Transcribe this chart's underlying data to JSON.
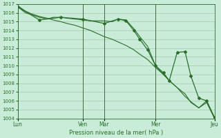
{
  "bg_color": "#c8ecd8",
  "grid_color": "#a8c8a8",
  "line_color": "#2a6e2a",
  "marker_color": "#2a6e2a",
  "xlabel": "Pression niveau de la mer( hPa )",
  "ylim": [
    1004,
    1017
  ],
  "yticks": [
    1004,
    1005,
    1006,
    1007,
    1008,
    1009,
    1010,
    1011,
    1012,
    1013,
    1014,
    1015,
    1016,
    1017
  ],
  "day_labels": [
    "Lun",
    "Ven",
    "Mar",
    "Mer",
    "Jeu"
  ],
  "day_positions": [
    0.0,
    0.33,
    0.44,
    0.7,
    1.0
  ],
  "vline_positions": [
    0.0,
    0.33,
    0.44,
    0.7,
    1.0
  ],
  "line1_x": [
    0.0,
    0.04,
    0.07,
    0.11,
    0.15,
    0.18,
    0.22,
    0.25,
    0.29,
    0.33,
    0.37,
    0.4,
    0.44,
    0.48,
    0.51,
    0.55,
    0.59,
    0.62,
    0.66,
    0.7,
    0.74,
    0.77,
    0.81,
    0.85,
    0.88,
    0.92,
    0.96,
    1.0
  ],
  "line1_y": [
    1016.7,
    1016.0,
    1015.8,
    1015.5,
    1015.3,
    1015.5,
    1015.5,
    1015.4,
    1015.3,
    1015.2,
    1015.1,
    1015.1,
    1015.1,
    1015.0,
    1015.3,
    1015.2,
    1014.2,
    1013.3,
    1012.2,
    1010.0,
    1009.0,
    1008.3,
    1007.5,
    1006.8,
    1005.8,
    1005.2,
    1006.0,
    1004.0
  ],
  "line2_x": [
    0.0,
    0.04,
    0.07,
    0.11,
    0.15,
    0.18,
    0.22,
    0.25,
    0.29,
    0.33,
    0.37,
    0.4,
    0.44,
    0.48,
    0.51,
    0.55,
    0.59,
    0.62,
    0.66,
    0.7,
    0.74,
    0.77,
    0.81,
    0.85,
    0.88,
    0.92,
    0.96,
    1.0
  ],
  "line2_y": [
    1016.8,
    1016.2,
    1015.9,
    1015.6,
    1015.4,
    1015.2,
    1015.0,
    1014.8,
    1014.6,
    1014.3,
    1014.0,
    1013.7,
    1013.3,
    1013.0,
    1012.7,
    1012.3,
    1011.8,
    1011.3,
    1010.7,
    1009.8,
    1009.0,
    1008.3,
    1007.5,
    1006.5,
    1005.9,
    1005.2,
    1005.8,
    1004.0
  ],
  "line3_x": [
    0.0,
    0.11,
    0.22,
    0.33,
    0.44,
    0.51,
    0.55,
    0.59,
    0.62,
    0.66,
    0.7,
    0.74,
    0.77,
    0.81,
    0.85,
    0.88,
    0.92,
    0.96,
    1.0
  ],
  "line3_y": [
    1016.7,
    1015.2,
    1015.5,
    1015.3,
    1014.8,
    1015.3,
    1015.1,
    1014.0,
    1013.0,
    1011.8,
    1010.0,
    1009.2,
    1008.3,
    1011.5,
    1011.6,
    1008.8,
    1006.3,
    1006.0,
    1004.1
  ]
}
